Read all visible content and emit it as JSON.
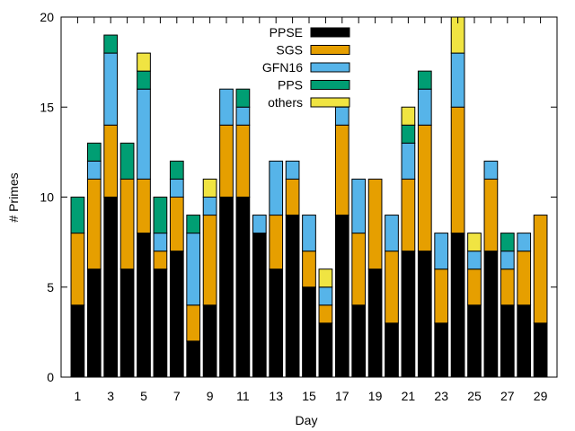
{
  "chart_data": {
    "type": "bar",
    "stacked": true,
    "title": "",
    "xlabel": "Day",
    "ylabel": "# Primes",
    "ylim": [
      0,
      20
    ],
    "yticks": [
      0,
      5,
      10,
      15,
      20
    ],
    "xticks": [
      1,
      3,
      5,
      7,
      9,
      11,
      13,
      15,
      17,
      19,
      21,
      23,
      25,
      27,
      29
    ],
    "legend_position": "top-center",
    "categories": [
      1,
      2,
      3,
      4,
      5,
      6,
      7,
      8,
      9,
      10,
      11,
      12,
      13,
      14,
      15,
      16,
      17,
      18,
      19,
      20,
      21,
      22,
      23,
      24,
      25,
      26,
      27,
      28,
      29
    ],
    "series": [
      {
        "name": "PPSE",
        "color": "#000000",
        "values": [
          4,
          6,
          10,
          6,
          8,
          6,
          7,
          2,
          4,
          10,
          10,
          8,
          6,
          9,
          5,
          3,
          9,
          4,
          6,
          3,
          7,
          7,
          3,
          8,
          4,
          7,
          4,
          4,
          3
        ]
      },
      {
        "name": "SGS",
        "color": "#e69f00",
        "values": [
          4,
          5,
          4,
          5,
          3,
          1,
          3,
          2,
          5,
          4,
          4,
          0,
          3,
          2,
          2,
          1,
          5,
          4,
          5,
          4,
          4,
          7,
          3,
          7,
          2,
          4,
          2,
          3,
          6
        ]
      },
      {
        "name": "GFN16",
        "color": "#56b4e9",
        "values": [
          0,
          1,
          4,
          0,
          5,
          1,
          1,
          4,
          1,
          2,
          1,
          1,
          3,
          1,
          2,
          1,
          1,
          3,
          0,
          2,
          2,
          2,
          2,
          3,
          1,
          1,
          1,
          1,
          0
        ]
      },
      {
        "name": "PPS",
        "color": "#009e73",
        "values": [
          2,
          1,
          1,
          2,
          1,
          2,
          1,
          1,
          0,
          0,
          1,
          0,
          0,
          0,
          0,
          0,
          0,
          0,
          0,
          0,
          1,
          1,
          0,
          0,
          0,
          0,
          1,
          0,
          0
        ]
      },
      {
        "name": "others",
        "color": "#f0e442",
        "values": [
          0,
          0,
          0,
          0,
          1,
          0,
          0,
          0,
          1,
          0,
          0,
          0,
          0,
          0,
          0,
          1,
          0,
          0,
          0,
          0,
          1,
          0,
          0,
          2,
          1,
          0,
          0,
          0,
          0
        ]
      }
    ]
  }
}
